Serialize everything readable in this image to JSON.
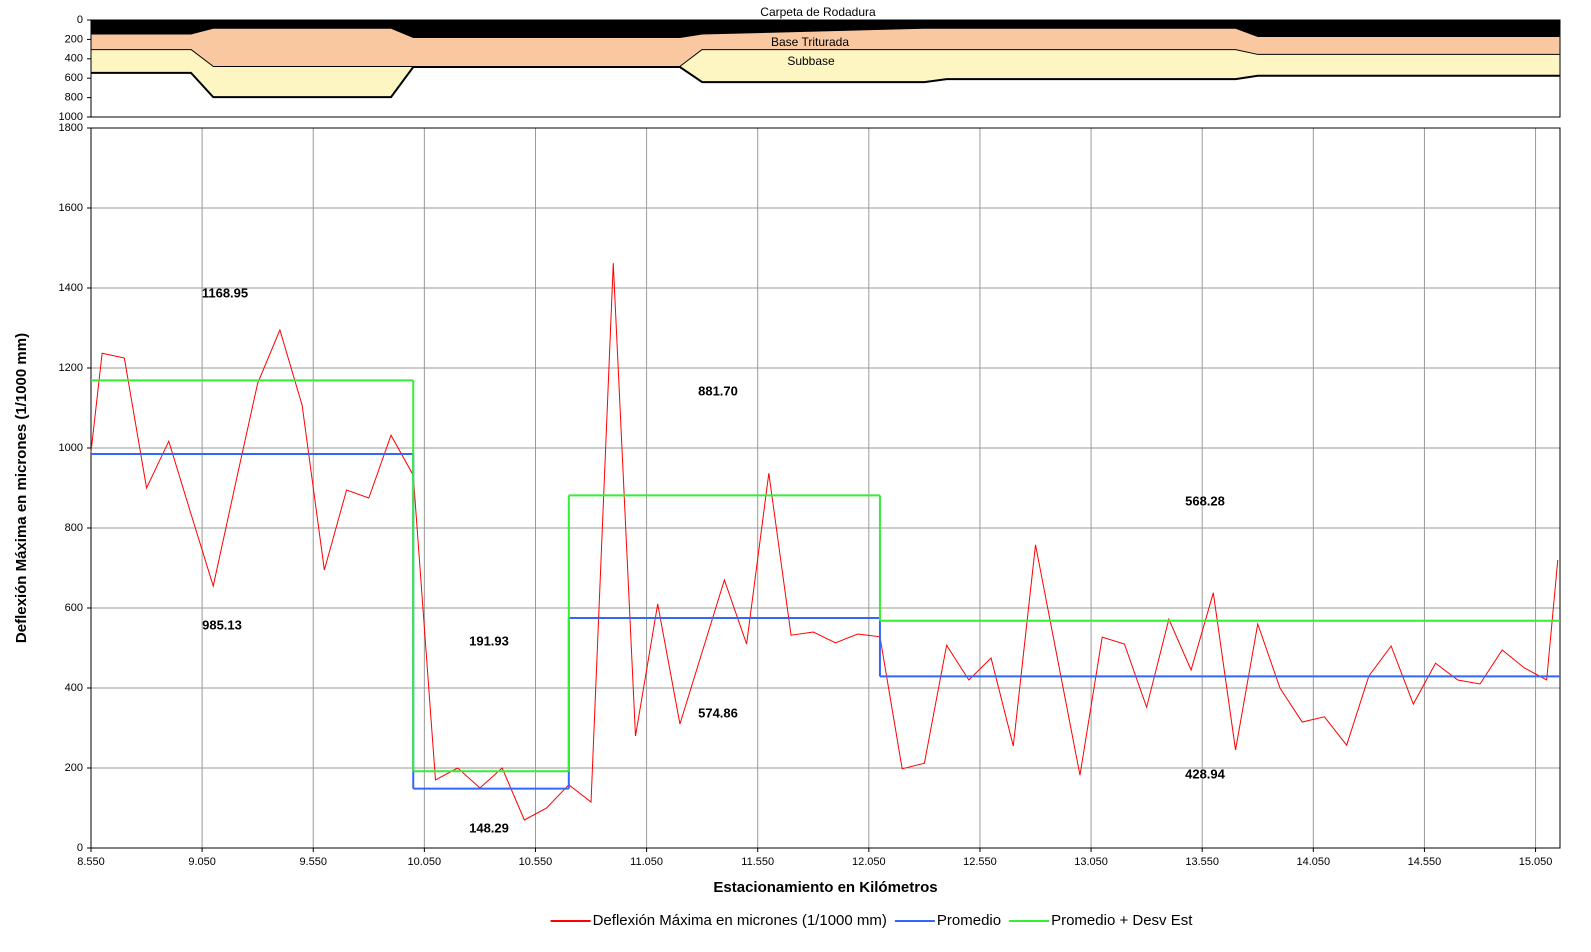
{
  "chart_data": [
    {
      "type": "area",
      "xlim": [
        8.55,
        15.16
      ],
      "ylim": [
        0,
        1000
      ],
      "y_inverted": true,
      "yticks": [
        0,
        200,
        400,
        600,
        800,
        1000
      ],
      "x": [
        8.55,
        9.0,
        9.1,
        9.9,
        10.0,
        11.2,
        11.3,
        12.3,
        12.4,
        13.7,
        13.8,
        15.16
      ],
      "series": [
        {
          "name": "Carpeta de Rodadura",
          "color": "#000000",
          "values": [
            150,
            150,
            90,
            90,
            185,
            185,
            150,
            90,
            90,
            90,
            175,
            175
          ]
        },
        {
          "name": "Base Triturada",
          "color": "#f9c8a0",
          "values": [
            310,
            310,
            485,
            485,
            485,
            485,
            310,
            310,
            310,
            310,
            360,
            360
          ]
        },
        {
          "name": "Subbase",
          "color": "#fdf6c3",
          "values": [
            545,
            545,
            795,
            795,
            485,
            485,
            640,
            640,
            610,
            610,
            575,
            575
          ]
        }
      ]
    },
    {
      "type": "line",
      "xlabel": "Estacionamiento en Kilómetros",
      "ylabel": "Deflexión Máxima en micrones (1/1000 mm)",
      "xlim": [
        8.55,
        15.16
      ],
      "ylim": [
        0,
        1800
      ],
      "xticks": [
        {
          "value": 8.55,
          "label": "8.550"
        },
        {
          "value": 9.05,
          "label": "9.050"
        },
        {
          "value": 9.55,
          "label": "9.550"
        },
        {
          "value": 10.05,
          "label": "10.050"
        },
        {
          "value": 10.55,
          "label": "10.550"
        },
        {
          "value": 11.05,
          "label": "11.050"
        },
        {
          "value": 11.55,
          "label": "11.550"
        },
        {
          "value": 12.05,
          "label": "12.050"
        },
        {
          "value": 12.55,
          "label": "12.550"
        },
        {
          "value": 13.05,
          "label": "13.050"
        },
        {
          "value": 13.55,
          "label": "13.550"
        },
        {
          "value": 14.05,
          "label": "14.050"
        },
        {
          "value": 14.55,
          "label": "14.550"
        },
        {
          "value": 15.05,
          "label": "15.050"
        }
      ],
      "yticks": [
        0,
        200,
        400,
        600,
        800,
        1000,
        1200,
        1400,
        1600,
        1800
      ],
      "grid": true,
      "legend": "bottom",
      "series": [
        {
          "name": "Deflexión Máxima en micrones (1/1000 mm)",
          "color": "#ff0000",
          "x": [
            8.55,
            8.6,
            8.7,
            8.8,
            8.9,
            9.0,
            9.1,
            9.2,
            9.3,
            9.4,
            9.5,
            9.6,
            9.7,
            9.8,
            9.9,
            10.0,
            10.1,
            10.2,
            10.3,
            10.4,
            10.5,
            10.6,
            10.7,
            10.8,
            10.9,
            11.0,
            11.1,
            11.2,
            11.3,
            11.4,
            11.5,
            11.6,
            11.7,
            11.8,
            11.9,
            12.0,
            12.1,
            12.2,
            12.3,
            12.4,
            12.5,
            12.6,
            12.7,
            12.8,
            12.9,
            13.0,
            13.1,
            13.2,
            13.3,
            13.4,
            13.5,
            13.6,
            13.7,
            13.8,
            13.9,
            14.0,
            14.1,
            14.2,
            14.3,
            14.4,
            14.5,
            14.6,
            14.7,
            14.8,
            14.9,
            15.0,
            15.1,
            15.15
          ],
          "values": [
            990,
            1237,
            1225,
            900,
            1017,
            835,
            655,
            910,
            1162,
            1295,
            1107,
            695,
            895,
            875,
            1032,
            932,
            170,
            200,
            150,
            200,
            70,
            100,
            158,
            115,
            1462,
            280,
            610,
            310,
            490,
            670,
            510,
            937,
            532,
            540,
            513,
            535,
            528,
            198,
            212,
            507,
            420,
            475,
            255,
            758,
            470,
            182,
            527,
            510,
            352,
            572,
            445,
            638,
            245,
            560,
            400,
            315,
            328,
            257,
            430,
            505,
            360,
            462,
            420,
            410,
            495,
            450,
            420,
            720
          ]
        },
        {
          "name": "Promedio",
          "color": "#3366ff",
          "step": true,
          "edges": [
            8.55,
            10.0,
            10.7,
            12.1,
            15.16
          ],
          "values": [
            985.13,
            148.29,
            574.86,
            428.94
          ]
        },
        {
          "name": "Promedio + Desv Est",
          "color": "#33ee33",
          "step": true,
          "edges": [
            8.55,
            10.0,
            10.7,
            12.1,
            15.16
          ],
          "values": [
            1168.95,
            191.93,
            881.7,
            568.28
          ],
          "value_labels": [
            "1168.95",
            "191.93",
            "881.70",
            "568.28"
          ]
        }
      ]
    }
  ]
}
